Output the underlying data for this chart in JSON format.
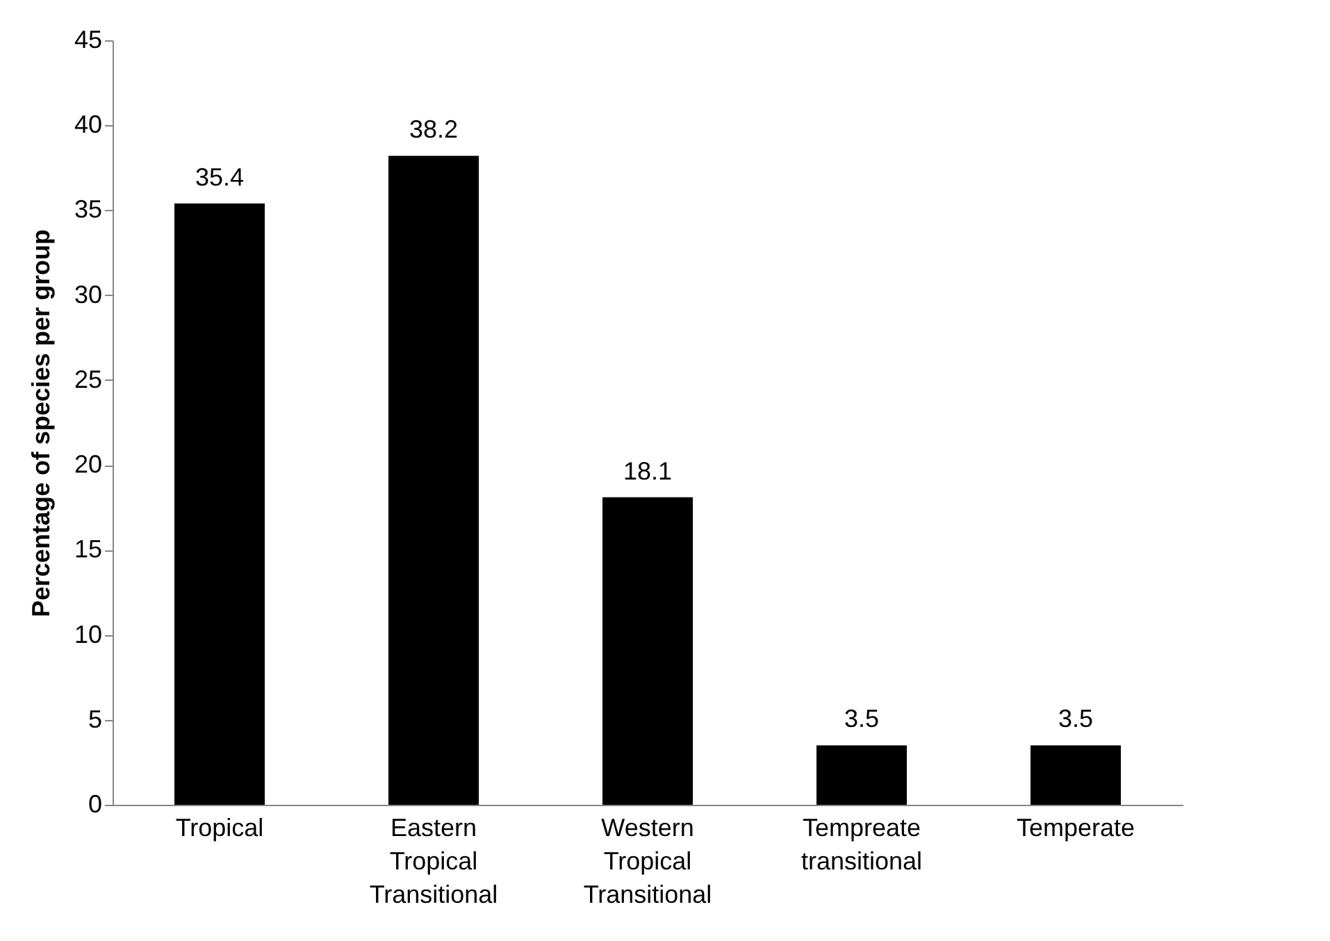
{
  "chart_data": {
    "type": "bar",
    "ylabel": "Percentage of species per group",
    "categories": [
      "Tropical",
      "Eastern Tropical Transitional",
      "Western Tropical Transitional",
      "Tempreate transitional",
      "Temperate"
    ],
    "values": [
      35.4,
      38.2,
      18.1,
      3.5,
      3.5
    ],
    "color": "#000000",
    "ylim": [
      0,
      45
    ],
    "yticks": [
      0,
      5,
      10,
      15,
      20,
      25,
      30,
      35,
      40,
      45
    ],
    "grid": false,
    "data_labels": true
  }
}
